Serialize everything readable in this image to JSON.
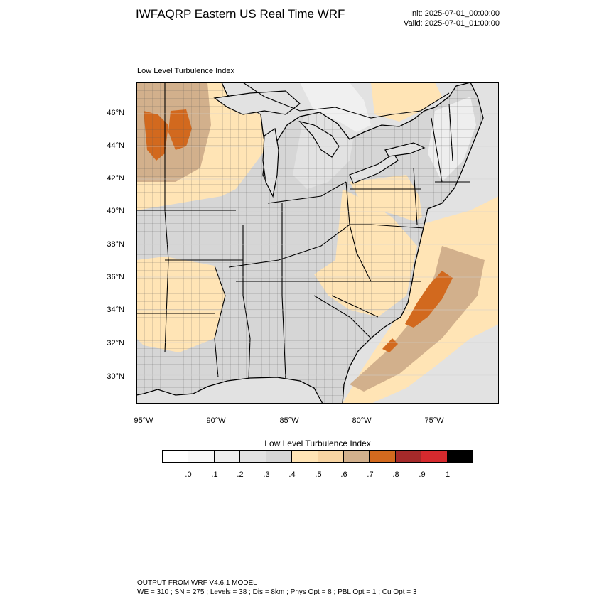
{
  "header": {
    "title": "IWFAQRP Eastern US Real Time WRF",
    "init": "Init: 2025-07-01_00:00:00",
    "valid": "Valid: 2025-07-01_01:00:00"
  },
  "map": {
    "panel_title": "Low Level Turbulence Index",
    "lat_labels": [
      "46°N",
      "44°N",
      "42°N",
      "40°N",
      "38°N",
      "36°N",
      "34°N",
      "32°N",
      "30°N"
    ],
    "lon_labels": [
      "95°W",
      "90°W",
      "85°W",
      "80°W",
      "75°W"
    ],
    "region": "Eastern United States"
  },
  "colorbar": {
    "title": "Low Level Turbulence Index",
    "ticks": [
      ".0",
      ".1",
      ".2",
      ".3",
      ".4",
      ".5",
      ".6",
      ".7",
      ".8",
      ".9",
      "1"
    ],
    "colors": [
      "#ffffff",
      "#f7f7f7",
      "#eeeeee",
      "#e2e2e2",
      "#d6d6d6",
      "#ffe4b5",
      "#f7d4a2",
      "#d2b08c",
      "#d2691e",
      "#a52a2a",
      "#d62a2e",
      "#000000"
    ]
  },
  "footer": {
    "line1": "OUTPUT FROM WRF V4.6.1 MODEL",
    "line2": "WE = 310 ; SN = 275 ; Levels = 38 ; Dis = 8km ; Phys Opt = 8 ; PBL Opt = 1 ; Cu Opt = 3"
  }
}
